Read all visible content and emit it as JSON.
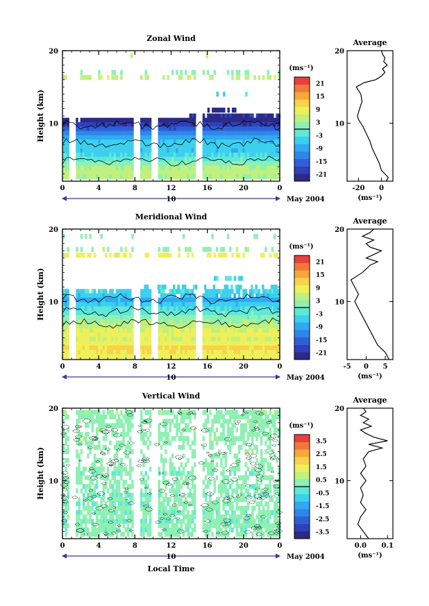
{
  "chart_data": [
    {
      "type": "heatmap",
      "title": "Zonal Wind",
      "xlabel": "",
      "ylabel": "Height (km)",
      "xlim": [
        0,
        24
      ],
      "ylim": [
        2,
        20
      ],
      "x_ticks": [
        "0",
        "4",
        "8",
        "12",
        "16",
        "20",
        "0"
      ],
      "y_ticks": [
        "10",
        "20"
      ],
      "date_axis": {
        "day_label": "10",
        "month_label": "May 2004"
      },
      "colorbar": {
        "unit": "(ms⁻¹)",
        "ticks": [
          "21",
          "15",
          "9",
          "3",
          "-3",
          "-9",
          "-15",
          "-21"
        ],
        "range": [
          -24,
          24
        ]
      },
      "profile": {
        "title": "Average",
        "xlabel": "(ms⁻¹)",
        "x_ticks": [
          "-20",
          "0"
        ],
        "xlim": [
          -30,
          10
        ],
        "y_ticks": [
          "10",
          "20"
        ],
        "points": [
          [
            4,
            2
          ],
          [
            6,
            2.5
          ],
          [
            3,
            3
          ],
          [
            0,
            3.5
          ],
          [
            -2,
            4.5
          ],
          [
            -5,
            5.5
          ],
          [
            -8,
            6.5
          ],
          [
            -10,
            7.5
          ],
          [
            -13,
            8.5
          ],
          [
            -16,
            9.5
          ],
          [
            -18,
            10
          ],
          [
            -20,
            10.5
          ],
          [
            -21,
            11
          ],
          [
            -19,
            12
          ],
          [
            -17,
            13
          ],
          [
            -18,
            14
          ],
          [
            -22,
            15
          ],
          [
            -15,
            15.6
          ],
          [
            -5,
            16
          ],
          [
            0,
            16.5
          ],
          [
            3,
            17
          ],
          [
            1,
            17.5
          ],
          [
            5,
            18
          ],
          [
            2,
            18.5
          ],
          [
            3,
            19
          ],
          [
            1,
            19.5
          ],
          [
            0,
            20
          ]
        ]
      },
      "contour_heights": [
        4.8,
        7.2,
        9.8
      ],
      "gap_hours": [
        1,
        8,
        10,
        15
      ],
      "data_rows": [
        {
          "h": 19.3,
          "x0": 7.5,
          "x1": 18,
          "value": 4,
          "density": 0.05
        },
        {
          "h": 17.0,
          "x0": 0,
          "x1": 24,
          "value": 2,
          "density": 0.3
        },
        {
          "h": 16.3,
          "x0": 0,
          "x1": 24,
          "value": 6,
          "density": 0.45
        },
        {
          "h": 14.0,
          "x0": 16,
          "x1": 22,
          "value": -4,
          "density": 0.15
        },
        {
          "h": 11.8,
          "x0": 16,
          "x1": 19,
          "value": -22,
          "density": 0.6
        },
        {
          "h": 11.0,
          "x0": 14,
          "x1": 24,
          "value": -21,
          "density": 0.9
        },
        {
          "h": 10.4,
          "x0": 0,
          "x1": 24,
          "value": -22,
          "density": 0.98
        },
        {
          "h": 9.8,
          "x0": 0,
          "x1": 24,
          "value": -20,
          "density": 1
        },
        {
          "h": 9.2,
          "x0": 0,
          "x1": 24,
          "value": -16,
          "density": 1
        },
        {
          "h": 8.6,
          "x0": 0,
          "x1": 24,
          "value": -12,
          "density": 1
        },
        {
          "h": 8.0,
          "x0": 0,
          "x1": 24,
          "value": -9,
          "density": 1
        },
        {
          "h": 7.4,
          "x0": 0,
          "x1": 24,
          "value": -6,
          "density": 1
        },
        {
          "h": 6.8,
          "x0": 0,
          "x1": 24,
          "value": -5,
          "density": 1
        },
        {
          "h": 6.2,
          "x0": 0,
          "x1": 24,
          "value": -6,
          "density": 1
        },
        {
          "h": 5.6,
          "x0": 0,
          "x1": 24,
          "value": -4,
          "density": 1
        },
        {
          "h": 5.0,
          "x0": 0,
          "x1": 24,
          "value": -1,
          "density": 1
        },
        {
          "h": 4.4,
          "x0": 0,
          "x1": 24,
          "value": 2,
          "density": 1
        },
        {
          "h": 3.8,
          "x0": 0,
          "x1": 24,
          "value": 4,
          "density": 1
        },
        {
          "h": 3.2,
          "x0": 0,
          "x1": 24,
          "value": 5,
          "density": 1
        },
        {
          "h": 2.6,
          "x0": 0,
          "x1": 24,
          "value": 4,
          "density": 1
        }
      ]
    },
    {
      "type": "heatmap",
      "title": "Meridional Wind",
      "xlabel": "",
      "ylabel": "Height (km)",
      "xlim": [
        0,
        24
      ],
      "ylim": [
        2,
        20
      ],
      "x_ticks": [
        "0",
        "4",
        "8",
        "12",
        "16",
        "20",
        "0"
      ],
      "y_ticks": [
        "10",
        "20"
      ],
      "date_axis": {
        "day_label": "10",
        "month_label": "May 2004"
      },
      "colorbar": {
        "unit": "(ms⁻¹)",
        "ticks": [
          "21",
          "15",
          "9",
          "3",
          "-3",
          "-9",
          "-15",
          "-21"
        ],
        "range": [
          -24,
          24
        ]
      },
      "profile": {
        "title": "Average",
        "xlabel": "(ms⁻¹)",
        "x_ticks": [
          "-5",
          "0",
          "5"
        ],
        "xlim": [
          -5,
          7
        ],
        "y_ticks": [
          "10",
          "20"
        ],
        "points": [
          [
            6,
            2
          ],
          [
            5,
            3
          ],
          [
            3,
            4
          ],
          [
            2,
            5
          ],
          [
            1,
            6
          ],
          [
            0,
            7
          ],
          [
            -1,
            8
          ],
          [
            -2,
            9
          ],
          [
            -3,
            10
          ],
          [
            -2,
            11
          ],
          [
            -3,
            12
          ],
          [
            -4,
            13
          ],
          [
            -1,
            14
          ],
          [
            1,
            15
          ],
          [
            3,
            15.5
          ],
          [
            0,
            16
          ],
          [
            2,
            16.5
          ],
          [
            4,
            17
          ],
          [
            1,
            17.5
          ],
          [
            0,
            18
          ],
          [
            2,
            18.5
          ],
          [
            -1,
            19
          ],
          [
            1,
            19.5
          ],
          [
            2,
            20
          ]
        ]
      },
      "contour_heights": [
        7.0,
        8.6,
        10.4
      ],
      "gap_hours": [
        1,
        8,
        10,
        15
      ],
      "data_rows": [
        {
          "h": 19.0,
          "x0": 0,
          "x1": 24,
          "value": 2,
          "density": 0.12
        },
        {
          "h": 17.2,
          "x0": 0,
          "x1": 24,
          "value": 3,
          "density": 0.35
        },
        {
          "h": 16.4,
          "x0": 0,
          "x1": 24,
          "value": 8,
          "density": 0.45
        },
        {
          "h": 13.2,
          "x0": 15,
          "x1": 20,
          "value": -3,
          "density": 0.3
        },
        {
          "h": 12.0,
          "x0": 9,
          "x1": 24,
          "value": -4,
          "density": 0.55
        },
        {
          "h": 11.4,
          "x0": 0,
          "x1": 24,
          "value": -4,
          "density": 0.8
        },
        {
          "h": 10.8,
          "x0": 0,
          "x1": 24,
          "value": -6,
          "density": 0.95
        },
        {
          "h": 10.2,
          "x0": 0,
          "x1": 24,
          "value": -8,
          "density": 1
        },
        {
          "h": 9.6,
          "x0": 0,
          "x1": 24,
          "value": -6,
          "density": 1
        },
        {
          "h": 9.0,
          "x0": 0,
          "x1": 24,
          "value": -3,
          "density": 1
        },
        {
          "h": 8.4,
          "x0": 0,
          "x1": 24,
          "value": -1,
          "density": 1
        },
        {
          "h": 7.8,
          "x0": 0,
          "x1": 24,
          "value": 1,
          "density": 1
        },
        {
          "h": 7.2,
          "x0": 0,
          "x1": 24,
          "value": 3,
          "density": 1
        },
        {
          "h": 6.6,
          "x0": 0,
          "x1": 24,
          "value": 5,
          "density": 1
        },
        {
          "h": 6.0,
          "x0": 0,
          "x1": 24,
          "value": 7,
          "density": 1
        },
        {
          "h": 5.4,
          "x0": 0,
          "x1": 24,
          "value": 8,
          "density": 1
        },
        {
          "h": 4.8,
          "x0": 0,
          "x1": 24,
          "value": 7,
          "density": 1
        },
        {
          "h": 4.2,
          "x0": 0,
          "x1": 24,
          "value": 9,
          "density": 1
        },
        {
          "h": 3.6,
          "x0": 0,
          "x1": 24,
          "value": 11,
          "density": 1
        },
        {
          "h": 3.0,
          "x0": 0,
          "x1": 24,
          "value": 10,
          "density": 1
        },
        {
          "h": 2.4,
          "x0": 0,
          "x1": 24,
          "value": 8,
          "density": 1
        }
      ]
    },
    {
      "type": "heatmap",
      "title": "Vertical Wind",
      "xlabel": "Local Time",
      "ylabel": "Height (km)",
      "xlim": [
        0,
        24
      ],
      "ylim": [
        2,
        20
      ],
      "x_ticks": [
        "0",
        "4",
        "8",
        "12",
        "16",
        "20",
        "0"
      ],
      "y_ticks": [
        "10",
        "20"
      ],
      "date_axis": {
        "day_label": "10",
        "month_label": "May 2004"
      },
      "colorbar": {
        "unit": "(ms⁻¹)",
        "ticks": [
          "3.5",
          "2.5",
          "1.5",
          "0.5",
          "-0.5",
          "-1.5",
          "-2.5",
          "-3.5"
        ],
        "range": [
          -4,
          4
        ]
      },
      "profile": {
        "title": "Average",
        "xlabel": "(ms⁻¹)",
        "x_ticks": [
          "0.0",
          "0.1"
        ],
        "xlim": [
          -0.05,
          0.12
        ],
        "y_ticks": [
          "10",
          "20"
        ],
        "points": [
          [
            0.03,
            2
          ],
          [
            0.01,
            3
          ],
          [
            -0.01,
            4
          ],
          [
            0.0,
            5
          ],
          [
            0.02,
            6
          ],
          [
            0.0,
            7
          ],
          [
            0.01,
            8
          ],
          [
            0.0,
            9
          ],
          [
            0.02,
            10
          ],
          [
            0.0,
            11
          ],
          [
            0.02,
            12
          ],
          [
            0.01,
            13
          ],
          [
            0.03,
            14
          ],
          [
            0.08,
            14.5
          ],
          [
            0.03,
            15
          ],
          [
            0.1,
            15.5
          ],
          [
            0.05,
            16
          ],
          [
            0.02,
            16.5
          ],
          [
            0.0,
            17
          ],
          [
            0.04,
            17.5
          ],
          [
            0.01,
            18
          ],
          [
            0.03,
            18.5
          ],
          [
            0.0,
            19
          ],
          [
            0.02,
            19.5
          ],
          [
            0.01,
            20
          ]
        ]
      },
      "contour_heights": [],
      "gap_hours": [
        1,
        8,
        10,
        15
      ],
      "data_rows": [
        {
          "h": 19.4,
          "x0": 0,
          "x1": 24,
          "value": 0.4,
          "density": 0.75
        },
        {
          "h": 18.8,
          "x0": 0,
          "x1": 24,
          "value": 0.3,
          "density": 0.7
        },
        {
          "h": 18.2,
          "x0": 0,
          "x1": 24,
          "value": 0.4,
          "density": 0.7
        },
        {
          "h": 17.6,
          "x0": 0,
          "x1": 24,
          "value": 0.2,
          "density": 0.6
        },
        {
          "h": 17.0,
          "x0": 0,
          "x1": 24,
          "value": 0.4,
          "density": 0.55
        },
        {
          "h": 16.4,
          "x0": 0,
          "x1": 24,
          "value": 0.3,
          "density": 0.5
        },
        {
          "h": 15.8,
          "x0": 0,
          "x1": 24,
          "value": 0.4,
          "density": 0.45
        },
        {
          "h": 15.2,
          "x0": 0,
          "x1": 24,
          "value": 0.2,
          "density": 0.4
        },
        {
          "h": 14.6,
          "x0": 0,
          "x1": 24,
          "value": 0.3,
          "density": 0.35
        },
        {
          "h": 14.0,
          "x0": 0,
          "x1": 24,
          "value": 0.4,
          "density": 0.3
        },
        {
          "h": 13.4,
          "x0": 0,
          "x1": 24,
          "value": 0.3,
          "density": 0.3
        },
        {
          "h": 12.8,
          "x0": 0,
          "x1": 24,
          "value": 0.2,
          "density": 0.35
        },
        {
          "h": 12.2,
          "x0": 0,
          "x1": 24,
          "value": 0.3,
          "density": 0.4
        },
        {
          "h": 11.6,
          "x0": 0,
          "x1": 24,
          "value": 0.2,
          "density": 0.45
        },
        {
          "h": 11.0,
          "x0": 0,
          "x1": 24,
          "value": 0.1,
          "density": 0.5
        },
        {
          "h": 10.4,
          "x0": 0,
          "x1": 24,
          "value": 0.2,
          "density": 0.55
        },
        {
          "h": 9.8,
          "x0": 0,
          "x1": 24,
          "value": 0.3,
          "density": 0.55
        },
        {
          "h": 9.2,
          "x0": 0,
          "x1": 24,
          "value": 0.1,
          "density": 0.6
        },
        {
          "h": 8.6,
          "x0": 0,
          "x1": 24,
          "value": 0.2,
          "density": 0.6
        },
        {
          "h": 8.0,
          "x0": 0,
          "x1": 24,
          "value": 0.0,
          "density": 0.65
        },
        {
          "h": 7.4,
          "x0": 0,
          "x1": 24,
          "value": 0.2,
          "density": 0.65
        },
        {
          "h": 6.8,
          "x0": 0,
          "x1": 24,
          "value": 0.1,
          "density": 0.7
        },
        {
          "h": 6.2,
          "x0": 0,
          "x1": 24,
          "value": 0.3,
          "density": 0.7
        },
        {
          "h": 5.6,
          "x0": 0,
          "x1": 24,
          "value": 0.1,
          "density": 0.75
        },
        {
          "h": 5.0,
          "x0": 0,
          "x1": 24,
          "value": 0.2,
          "density": 0.75
        },
        {
          "h": 4.4,
          "x0": 0,
          "x1": 24,
          "value": 0.0,
          "density": 0.8
        },
        {
          "h": 3.8,
          "x0": 0,
          "x1": 24,
          "value": 0.2,
          "density": 0.8
        },
        {
          "h": 3.2,
          "x0": 0,
          "x1": 24,
          "value": 0.1,
          "density": 0.8
        },
        {
          "h": 2.6,
          "x0": 0,
          "x1": 24,
          "value": 0.2,
          "density": 0.8
        }
      ]
    }
  ]
}
